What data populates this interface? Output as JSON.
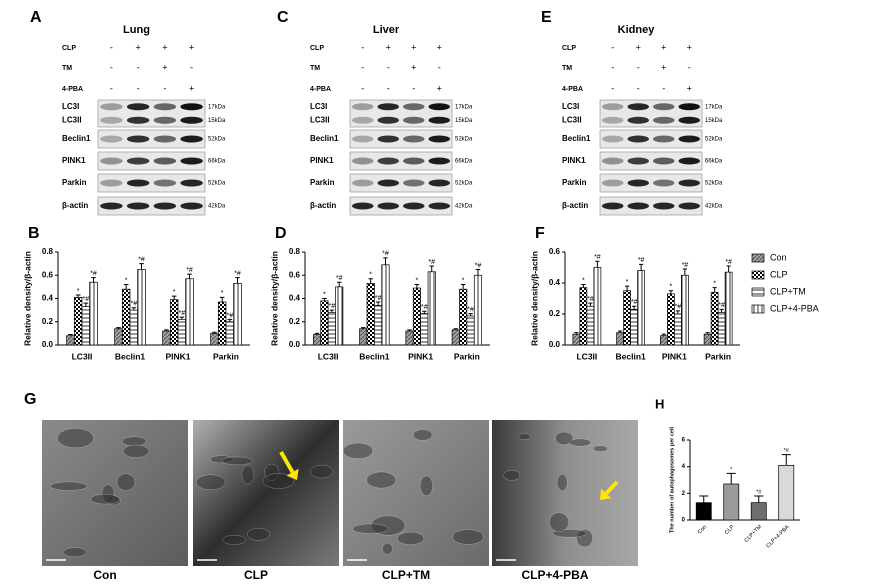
{
  "blots": [
    {
      "letter": "A",
      "title": "Lung",
      "conditions": [
        {
          "name": "CLP",
          "signs": [
            "-",
            "+",
            "+",
            "+"
          ]
        },
        {
          "name": "TM",
          "signs": [
            "-",
            "-",
            "+",
            "-"
          ]
        },
        {
          "name": "4-PBA",
          "signs": [
            "-",
            "-",
            "-",
            "+"
          ]
        }
      ],
      "bands": [
        {
          "names": [
            "LC3I",
            "LC3II"
          ],
          "sizes": [
            "17kDa",
            "15kDa"
          ]
        },
        {
          "names": [
            "Beclin1"
          ],
          "sizes": [
            "52kDa"
          ]
        },
        {
          "names": [
            "PINK1"
          ],
          "sizes": [
            "66kDa"
          ]
        },
        {
          "names": [
            "Parkin"
          ],
          "sizes": [
            "52kDa"
          ]
        },
        {
          "names": [
            "β-actin"
          ],
          "sizes": [
            "42kDa"
          ]
        }
      ]
    },
    {
      "letter": "C",
      "title": "Liver",
      "conditions": [
        {
          "name": "CLP",
          "signs": [
            "-",
            "+",
            "+",
            "+"
          ]
        },
        {
          "name": "TM",
          "signs": [
            "-",
            "-",
            "+",
            "-"
          ]
        },
        {
          "name": "4-PBA",
          "signs": [
            "-",
            "-",
            "-",
            "+"
          ]
        }
      ],
      "bands": [
        {
          "names": [
            "LC3I",
            "LC3II"
          ],
          "sizes": [
            "17kDa",
            "15kDa"
          ]
        },
        {
          "names": [
            "Beclin1"
          ],
          "sizes": [
            "52kDa"
          ]
        },
        {
          "names": [
            "PINK1"
          ],
          "sizes": [
            "66kDa"
          ]
        },
        {
          "names": [
            "Parkin"
          ],
          "sizes": [
            "52kDa"
          ]
        },
        {
          "names": [
            "β-actin"
          ],
          "sizes": [
            "42kDa"
          ]
        }
      ]
    },
    {
      "letter": "E",
      "title": "Kidney",
      "conditions": [
        {
          "name": "CLP",
          "signs": [
            "-",
            "+",
            "+",
            "+"
          ]
        },
        {
          "name": "TM",
          "signs": [
            "-",
            "-",
            "+",
            "-"
          ]
        },
        {
          "name": "4-PBA",
          "signs": [
            "-",
            "-",
            "-",
            "+"
          ]
        }
      ],
      "bands": [
        {
          "names": [
            "LC3I",
            "LC3II"
          ],
          "sizes": [
            "17kDa",
            "15kDa"
          ]
        },
        {
          "names": [
            "Beclin1"
          ],
          "sizes": [
            "52kDa"
          ]
        },
        {
          "names": [
            "PINK1"
          ],
          "sizes": [
            "66kDa"
          ]
        },
        {
          "names": [
            "Parkin"
          ],
          "sizes": [
            "52kDa"
          ]
        },
        {
          "names": [
            "β-actin"
          ],
          "sizes": [
            "42kDa"
          ]
        }
      ]
    }
  ],
  "chart_data": [
    {
      "type": "bar",
      "panel": "B",
      "ylabel": "Relative density/β-actin",
      "categories": [
        "LC3II",
        "Beclin1",
        "PINK1",
        "Parkin"
      ],
      "ylim": [
        0,
        0.8
      ],
      "yticks": [
        {
          "value": 0,
          "label": "0.0"
        },
        0.2,
        0.4,
        0.6,
        0.8
      ],
      "series": [
        {
          "name": "Con",
          "color": "#555555",
          "pattern": "diagonal",
          "values": [
            0.08,
            0.14,
            0.12,
            0.1
          ],
          "errors": [
            0.01,
            0.01,
            0.01,
            0.01
          ]
        },
        {
          "name": "CLP",
          "color": "#000000",
          "pattern": "checker",
          "annotation": "*",
          "values": [
            0.41,
            0.48,
            0.39,
            0.37
          ],
          "errors": [
            0.02,
            0.04,
            0.03,
            0.04
          ]
        },
        {
          "name": "CLP+TM",
          "color": "#000000",
          "pattern": "horizontal",
          "annotation": "*#",
          "values": [
            0.33,
            0.3,
            0.22,
            0.2
          ],
          "errors": [
            0.03,
            0.02,
            0.02,
            0.02
          ]
        },
        {
          "name": "CLP+4-PBA",
          "color": "#000000",
          "pattern": "vertical",
          "annotation": "*#",
          "values": [
            0.54,
            0.65,
            0.57,
            0.53
          ],
          "errors": [
            0.04,
            0.05,
            0.04,
            0.05
          ]
        }
      ]
    },
    {
      "type": "bar",
      "panel": "D",
      "ylabel": "Relative density/β-actin",
      "categories": [
        "LC3II",
        "Beclin1",
        "PINK1",
        "Parkin"
      ],
      "ylim": [
        0,
        0.8
      ],
      "yticks": [
        {
          "value": 0,
          "label": "0.0"
        },
        0.2,
        0.4,
        0.6,
        0.8
      ],
      "series": [
        {
          "name": "Con",
          "color": "#555555",
          "pattern": "diagonal",
          "values": [
            0.09,
            0.14,
            0.12,
            0.13
          ],
          "errors": [
            0.01,
            0.01,
            0.01,
            0.01
          ]
        },
        {
          "name": "CLP",
          "color": "#000000",
          "pattern": "checker",
          "annotation": "*",
          "values": [
            0.38,
            0.53,
            0.49,
            0.48
          ],
          "errors": [
            0.02,
            0.04,
            0.03,
            0.04
          ]
        },
        {
          "name": "CLP+TM",
          "color": "#000000",
          "pattern": "horizontal",
          "annotation": "*#",
          "values": [
            0.28,
            0.34,
            0.27,
            0.25
          ],
          "errors": [
            0.02,
            0.03,
            0.02,
            0.02
          ]
        },
        {
          "name": "CLP+4-PBA",
          "color": "#000000",
          "pattern": "vertical",
          "annotation": "*#",
          "values": [
            0.5,
            0.69,
            0.63,
            0.6
          ],
          "errors": [
            0.04,
            0.06,
            0.05,
            0.05
          ]
        }
      ]
    },
    {
      "type": "bar",
      "panel": "F",
      "ylabel": "Relative density/β-actin",
      "legend": "right",
      "categories": [
        "LC3II",
        "Beclin1",
        "PINK1",
        "Parkin"
      ],
      "ylim": [
        0,
        0.6
      ],
      "yticks": [
        {
          "value": 0,
          "label": "0.0"
        },
        0.2,
        0.4,
        0.6
      ],
      "series": [
        {
          "name": "Con",
          "color": "#555555",
          "pattern": "diagonal",
          "values": [
            0.07,
            0.08,
            0.06,
            0.07
          ],
          "errors": [
            0.01,
            0.01,
            0.01,
            0.01
          ]
        },
        {
          "name": "CLP",
          "color": "#000000",
          "pattern": "checker",
          "annotation": "*",
          "values": [
            0.37,
            0.35,
            0.33,
            0.34
          ],
          "errors": [
            0.02,
            0.03,
            0.02,
            0.03
          ]
        },
        {
          "name": "CLP+TM",
          "color": "#000000",
          "pattern": "horizontal",
          "annotation": "*#",
          "values": [
            0.25,
            0.23,
            0.2,
            0.21
          ],
          "errors": [
            0.02,
            0.02,
            0.02,
            0.02
          ]
        },
        {
          "name": "CLP+4-PBA",
          "color": "#000000",
          "pattern": "vertical",
          "annotation": "*#",
          "values": [
            0.5,
            0.48,
            0.45,
            0.47
          ],
          "errors": [
            0.04,
            0.04,
            0.04,
            0.04
          ]
        }
      ]
    },
    {
      "type": "bar",
      "panel": "H",
      "ylabel": "The number of autophagosomes per cell",
      "categories": [
        "Con",
        "CLP",
        "CLP+TM",
        "CLP+4-PBA"
      ],
      "values": [
        1.3,
        2.7,
        1.3,
        4.1
      ],
      "errors": [
        0.5,
        0.8,
        0.5,
        0.8
      ],
      "colors": [
        "#000000",
        "#9a9a9a",
        "#6e6e6e",
        "#d9d9d9"
      ],
      "annotations": [
        null,
        "*",
        "*#",
        "*#"
      ],
      "ylim": [
        0,
        6
      ],
      "yticks": [
        0,
        2,
        4,
        6
      ]
    }
  ],
  "em": {
    "letter": "G",
    "labels": [
      "Con",
      "CLP",
      "CLP+TM",
      "CLP+4-PBA"
    ]
  }
}
